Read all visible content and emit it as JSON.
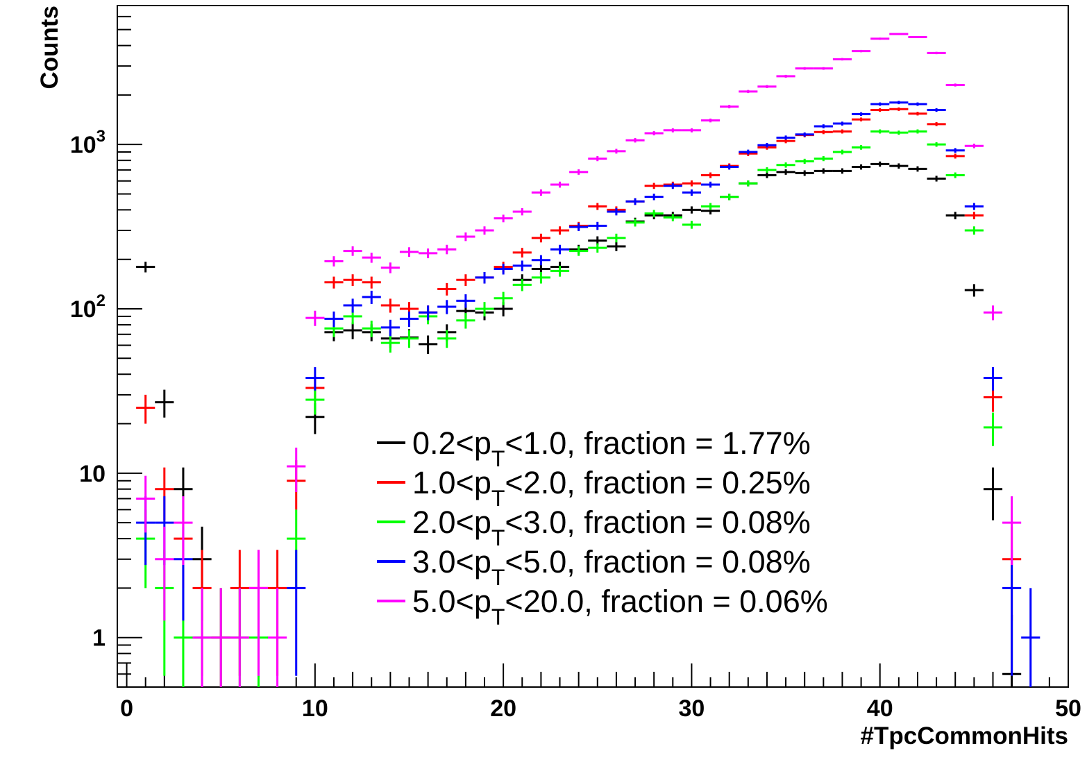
{
  "chart_data": {
    "type": "scatter",
    "style": "histogram-points-with-error-bars",
    "title": "",
    "xlabel": "#TpcCommonHits",
    "ylabel": "Counts",
    "xlim": [
      -0.5,
      50
    ],
    "ylim": [
      0.5,
      7000
    ],
    "y_scale": "log",
    "x_ticks": [
      "0",
      "10",
      "20",
      "30",
      "40",
      "50"
    ],
    "y_ticks": [
      {
        "value": 1,
        "base": "1",
        "exp": ""
      },
      {
        "value": 10,
        "base": "10",
        "exp": ""
      },
      {
        "value": 100,
        "base": "10",
        "exp": "2"
      },
      {
        "value": 1000,
        "base": "10",
        "exp": "3"
      }
    ],
    "grid": false,
    "legend_position": "lower-center",
    "series": [
      {
        "label_pre": "0.2<p",
        "label_sub": "T",
        "label_post": "<1.0, fraction = 1.77%",
        "color": "#000000",
        "points": [
          [
            1,
            180
          ],
          [
            2,
            27
          ],
          [
            3,
            8
          ],
          [
            4,
            3
          ],
          [
            10,
            22
          ],
          [
            11,
            72
          ],
          [
            12,
            74
          ],
          [
            13,
            72
          ],
          [
            14,
            66
          ],
          [
            15,
            67
          ],
          [
            16,
            61
          ],
          [
            17,
            72
          ],
          [
            18,
            97
          ],
          [
            19,
            95
          ],
          [
            20,
            100
          ],
          [
            21,
            150
          ],
          [
            22,
            175
          ],
          [
            23,
            180
          ],
          [
            24,
            230
          ],
          [
            25,
            260
          ],
          [
            26,
            240
          ],
          [
            27,
            340
          ],
          [
            28,
            370
          ],
          [
            29,
            370
          ],
          [
            30,
            400
          ],
          [
            31,
            395
          ],
          [
            32,
            480
          ],
          [
            33,
            580
          ],
          [
            34,
            650
          ],
          [
            35,
            680
          ],
          [
            36,
            670
          ],
          [
            37,
            690
          ],
          [
            38,
            690
          ],
          [
            39,
            730
          ],
          [
            40,
            760
          ],
          [
            41,
            740
          ],
          [
            42,
            710
          ],
          [
            43,
            620
          ],
          [
            44,
            370
          ],
          [
            45,
            130
          ],
          [
            46,
            8
          ],
          [
            47,
            0.6
          ]
        ]
      },
      {
        "label_pre": "1.0<p",
        "label_sub": "T",
        "label_post": "<2.0, fraction = 0.25%",
        "color": "#ff0000",
        "points": [
          [
            1,
            25
          ],
          [
            2,
            8
          ],
          [
            3,
            4
          ],
          [
            4,
            2
          ],
          [
            5,
            1
          ],
          [
            6,
            2
          ],
          [
            7,
            2
          ],
          [
            8,
            2
          ],
          [
            9,
            9
          ],
          [
            10,
            33
          ],
          [
            11,
            145
          ],
          [
            12,
            150
          ],
          [
            13,
            145
          ],
          [
            14,
            105
          ],
          [
            15,
            100
          ],
          [
            16,
            95
          ],
          [
            17,
            132
          ],
          [
            18,
            150
          ],
          [
            19,
            155
          ],
          [
            20,
            180
          ],
          [
            21,
            220
          ],
          [
            22,
            270
          ],
          [
            23,
            300
          ],
          [
            24,
            320
          ],
          [
            25,
            420
          ],
          [
            26,
            400
          ],
          [
            27,
            450
          ],
          [
            28,
            560
          ],
          [
            29,
            570
          ],
          [
            30,
            580
          ],
          [
            31,
            650
          ],
          [
            32,
            740
          ],
          [
            33,
            880
          ],
          [
            34,
            960
          ],
          [
            35,
            1050
          ],
          [
            36,
            1140
          ],
          [
            37,
            1190
          ],
          [
            38,
            1200
          ],
          [
            39,
            1420
          ],
          [
            40,
            1620
          ],
          [
            41,
            1640
          ],
          [
            42,
            1540
          ],
          [
            43,
            1330
          ],
          [
            44,
            850
          ],
          [
            45,
            370
          ],
          [
            46,
            29
          ],
          [
            47,
            3
          ]
        ]
      },
      {
        "label_pre": "2.0<p",
        "label_sub": "T",
        "label_post": "<3.0, fraction = 0.08%",
        "color": "#00ff00",
        "points": [
          [
            1,
            4
          ],
          [
            2,
            2
          ],
          [
            3,
            1
          ],
          [
            4,
            1
          ],
          [
            5,
            1
          ],
          [
            6,
            1
          ],
          [
            7,
            1
          ],
          [
            9,
            4
          ],
          [
            10,
            28
          ],
          [
            11,
            76
          ],
          [
            12,
            90
          ],
          [
            13,
            76
          ],
          [
            14,
            62
          ],
          [
            15,
            66
          ],
          [
            16,
            90
          ],
          [
            17,
            66
          ],
          [
            18,
            85
          ],
          [
            19,
            100
          ],
          [
            20,
            116
          ],
          [
            21,
            140
          ],
          [
            22,
            155
          ],
          [
            23,
            170
          ],
          [
            24,
            225
          ],
          [
            25,
            235
          ],
          [
            26,
            270
          ],
          [
            27,
            335
          ],
          [
            28,
            380
          ],
          [
            29,
            360
          ],
          [
            30,
            325
          ],
          [
            31,
            420
          ],
          [
            32,
            480
          ],
          [
            33,
            580
          ],
          [
            34,
            700
          ],
          [
            35,
            750
          ],
          [
            36,
            790
          ],
          [
            37,
            820
          ],
          [
            38,
            900
          ],
          [
            39,
            960
          ],
          [
            40,
            1200
          ],
          [
            41,
            1180
          ],
          [
            42,
            1200
          ],
          [
            43,
            1000
          ],
          [
            44,
            650
          ],
          [
            45,
            300
          ],
          [
            46,
            19
          ]
        ]
      },
      {
        "label_pre": "3.0<p",
        "label_sub": "T",
        "label_post": "<5.0, fraction = 0.08%",
        "color": "#0000ff",
        "points": [
          [
            1,
            5
          ],
          [
            2,
            5
          ],
          [
            3,
            3
          ],
          [
            9,
            2
          ],
          [
            10,
            38
          ],
          [
            11,
            87
          ],
          [
            12,
            105
          ],
          [
            13,
            118
          ],
          [
            14,
            77
          ],
          [
            15,
            87
          ],
          [
            16,
            95
          ],
          [
            17,
            103
          ],
          [
            18,
            112
          ],
          [
            19,
            155
          ],
          [
            20,
            175
          ],
          [
            21,
            183
          ],
          [
            22,
            198
          ],
          [
            23,
            230
          ],
          [
            24,
            315
          ],
          [
            25,
            320
          ],
          [
            26,
            390
          ],
          [
            27,
            450
          ],
          [
            28,
            480
          ],
          [
            29,
            560
          ],
          [
            30,
            510
          ],
          [
            31,
            570
          ],
          [
            32,
            730
          ],
          [
            33,
            900
          ],
          [
            34,
            990
          ],
          [
            35,
            1100
          ],
          [
            36,
            1150
          ],
          [
            37,
            1290
          ],
          [
            38,
            1340
          ],
          [
            39,
            1530
          ],
          [
            40,
            1760
          ],
          [
            41,
            1800
          ],
          [
            42,
            1760
          ],
          [
            43,
            1620
          ],
          [
            44,
            920
          ],
          [
            45,
            420
          ],
          [
            46,
            38
          ],
          [
            47,
            2
          ],
          [
            48,
            1
          ]
        ]
      },
      {
        "label_pre": "5.0<p",
        "label_sub": "T",
        "label_post": "<20.0, fraction = 0.06%",
        "color": "#ff00ff",
        "points": [
          [
            1,
            7
          ],
          [
            2,
            3
          ],
          [
            3,
            5
          ],
          [
            4,
            1
          ],
          [
            5,
            1
          ],
          [
            6,
            1
          ],
          [
            7,
            2
          ],
          [
            8,
            1
          ],
          [
            9,
            11
          ],
          [
            10,
            88
          ],
          [
            11,
            195
          ],
          [
            12,
            225
          ],
          [
            13,
            205
          ],
          [
            14,
            178
          ],
          [
            15,
            222
          ],
          [
            16,
            218
          ],
          [
            17,
            230
          ],
          [
            18,
            275
          ],
          [
            19,
            300
          ],
          [
            20,
            355
          ],
          [
            21,
            390
          ],
          [
            22,
            510
          ],
          [
            23,
            570
          ],
          [
            24,
            680
          ],
          [
            25,
            820
          ],
          [
            26,
            910
          ],
          [
            27,
            1060
          ],
          [
            28,
            1170
          ],
          [
            29,
            1220
          ],
          [
            30,
            1220
          ],
          [
            31,
            1400
          ],
          [
            32,
            1700
          ],
          [
            33,
            2100
          ],
          [
            34,
            2250
          ],
          [
            35,
            2600
          ],
          [
            36,
            2900
          ],
          [
            37,
            2900
          ],
          [
            38,
            3300
          ],
          [
            39,
            3700
          ],
          [
            40,
            4400
          ],
          [
            41,
            4700
          ],
          [
            42,
            4500
          ],
          [
            43,
            3600
          ],
          [
            44,
            2300
          ],
          [
            45,
            980
          ],
          [
            46,
            95
          ],
          [
            47,
            5
          ]
        ]
      }
    ]
  }
}
